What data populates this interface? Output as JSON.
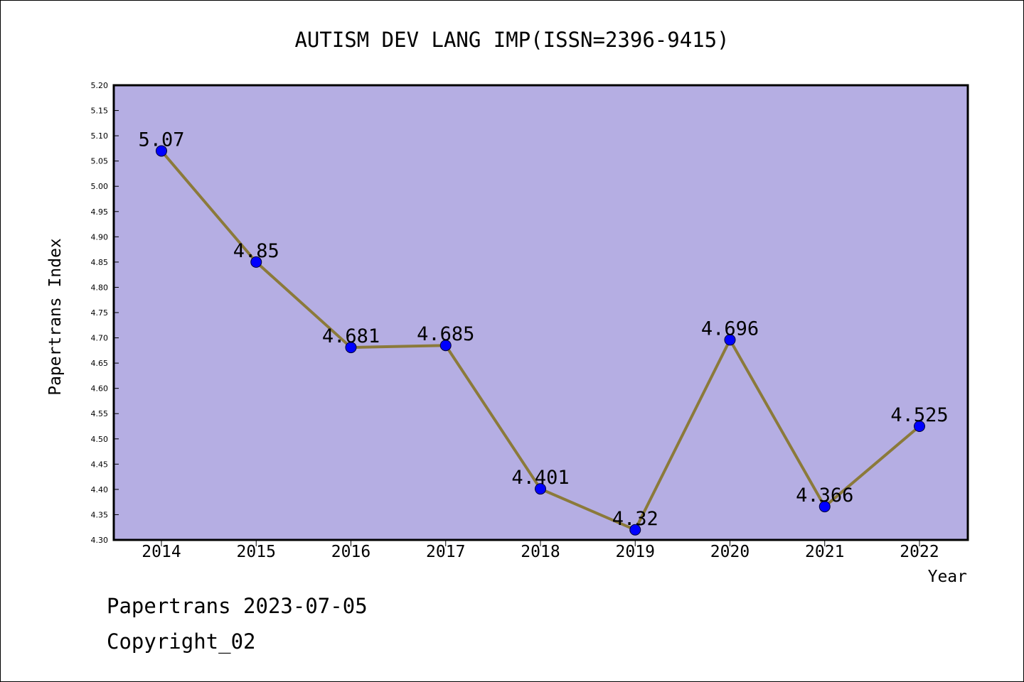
{
  "chart_data": {
    "type": "line",
    "title": "AUTISM DEV LANG IMP(ISSN=2396-9415)",
    "xlabel": "Year",
    "ylabel": "Papertrans Index",
    "categories": [
      "2014",
      "2015",
      "2016",
      "2017",
      "2018",
      "2019",
      "2020",
      "2021",
      "2022"
    ],
    "values": [
      5.07,
      4.85,
      4.681,
      4.685,
      4.401,
      4.32,
      4.696,
      4.366,
      4.525
    ],
    "data_labels": [
      "5.07",
      "4.85",
      "4.681",
      "4.685",
      "4.401",
      "4.32",
      "4.696",
      "4.366",
      "4.525"
    ],
    "ylim": [
      4.3,
      5.2
    ],
    "yticks": [
      "4.30",
      "4.35",
      "4.40",
      "4.45",
      "4.50",
      "4.55",
      "4.60",
      "4.65",
      "4.70",
      "4.75",
      "4.80",
      "4.85",
      "4.90",
      "4.95",
      "5.00",
      "5.05",
      "5.10",
      "5.15",
      "5.20"
    ],
    "grid": false,
    "colors": {
      "plot_background": "#b5aee3",
      "line": "#8b7a3a",
      "marker": "#0000ff"
    }
  },
  "footer": {
    "line1": "Papertrans 2023-07-05",
    "line2": "Copyright_02"
  }
}
